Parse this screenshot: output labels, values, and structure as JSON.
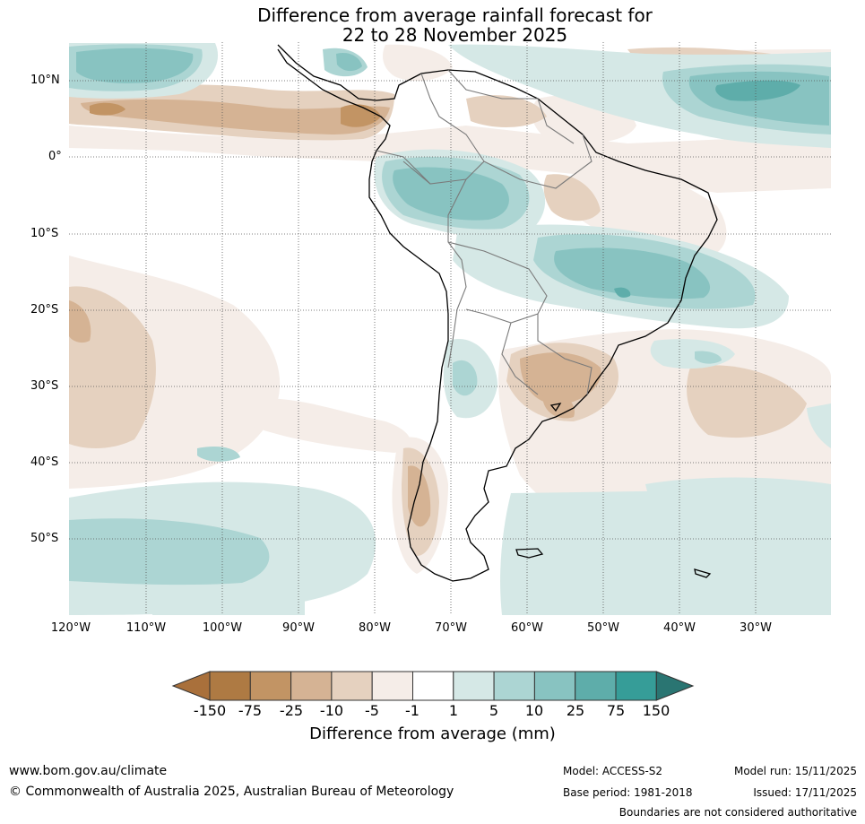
{
  "title": {
    "line1": "Difference from average rainfall forecast for",
    "line2": "22 to 28 November 2025"
  },
  "map": {
    "region": "South America",
    "lat_labels": [
      "10°N",
      "0°",
      "10°S",
      "20°S",
      "30°S",
      "40°S",
      "50°S"
    ],
    "lon_labels": [
      "120°W",
      "110°W",
      "100°W",
      "90°W",
      "80°W",
      "70°W",
      "60°W",
      "50°W",
      "40°W",
      "30°W"
    ]
  },
  "colorbar": {
    "ticks": [
      "-150",
      "-75",
      "-25",
      "-10",
      "-5",
      "-1",
      "1",
      "5",
      "10",
      "25",
      "75",
      "150"
    ],
    "colors": [
      "#a9703b",
      "#ae7a43",
      "#c29464",
      "#d5b394",
      "#e5d1bf",
      "#f5ede8",
      "#ffffff",
      "#d5e8e6",
      "#acd5d3",
      "#88c3c1",
      "#5eadaa",
      "#369d98",
      "#2a7572"
    ],
    "label": "Difference from average (mm)"
  },
  "footer": {
    "website": "www.bom.gov.au/climate",
    "copyright": "© Commonwealth of Australia 2025, Australian Bureau of Meteorology",
    "model": "Model: ACCESS-S2",
    "base_period": "Base period: 1981-2018",
    "model_run": "Model run: 15/11/2025",
    "issued": "Issued: 17/11/2025",
    "disclaimer": "Boundaries are not considered authoritative"
  }
}
